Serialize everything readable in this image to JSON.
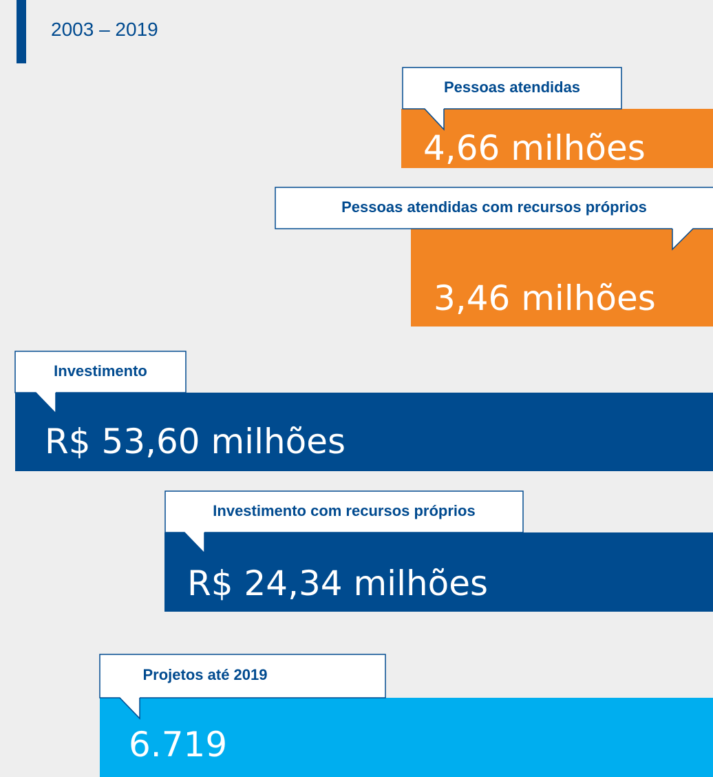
{
  "period": "2003 – 2019",
  "items": [
    {
      "label": "Pessoas atendidas",
      "value": "4,66 milhões"
    },
    {
      "label": "Pessoas atendidas com recursos próprios",
      "value": "3,46 milhões"
    },
    {
      "label": "Investimento",
      "value": "R$ 53,60 milhões"
    },
    {
      "label": "Investimento com recursos próprios",
      "value": "R$ 24,34 milhões"
    },
    {
      "label": "Projetos até 2019",
      "value": "6.719"
    }
  ]
}
